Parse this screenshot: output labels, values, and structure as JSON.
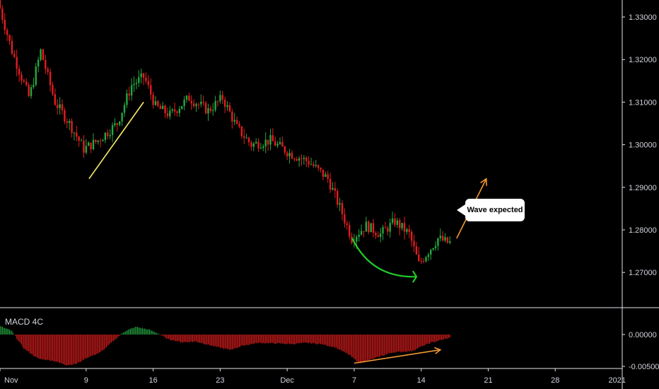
{
  "chart_data": [
    {
      "type": "candlestick",
      "title": "",
      "ylim": [
        1.265,
        1.335
      ],
      "y_ticks": [
        "1.33000",
        "1.32000",
        "1.31000",
        "1.30000",
        "1.29000",
        "1.28000",
        "1.27000"
      ],
      "y_tick_values": [
        1.33,
        1.32,
        1.31,
        1.3,
        1.29,
        1.28,
        1.27
      ],
      "x_ticks": [
        "Nov",
        "9",
        "16",
        "23",
        "Dec",
        "7",
        "14",
        "21",
        "28",
        "2021"
      ],
      "x_tick_days": [
        0,
        9,
        16,
        23,
        30,
        37,
        44,
        51,
        58,
        65
      ],
      "xlim_days": [
        0,
        65
      ],
      "trend_start": 1.334,
      "series_anchors": [
        [
          0.0,
          1.334
        ],
        [
          1.5,
          1.322
        ],
        [
          3.3,
          1.311
        ],
        [
          4.5,
          1.322
        ],
        [
          6.0,
          1.31
        ],
        [
          7.5,
          1.305
        ],
        [
          9.0,
          1.299
        ],
        [
          10.5,
          1.301
        ],
        [
          12.5,
          1.305
        ],
        [
          14.0,
          1.314
        ],
        [
          15.3,
          1.316
        ],
        [
          16.5,
          1.309
        ],
        [
          18.0,
          1.307
        ],
        [
          20.0,
          1.311
        ],
        [
          22.0,
          1.308
        ],
        [
          23.5,
          1.311
        ],
        [
          25.0,
          1.304
        ],
        [
          26.5,
          1.3
        ],
        [
          28.5,
          1.301
        ],
        [
          30.5,
          1.298
        ],
        [
          32.5,
          1.296
        ],
        [
          34.5,
          1.292
        ],
        [
          35.8,
          1.285
        ],
        [
          37.0,
          1.278
        ],
        [
          38.5,
          1.281
        ],
        [
          40.0,
          1.279
        ],
        [
          41.5,
          1.282
        ],
        [
          43.0,
          1.279
        ],
        [
          44.0,
          1.272
        ],
        [
          45.0,
          1.275
        ],
        [
          46.0,
          1.278
        ],
        [
          47.0,
          1.277
        ]
      ],
      "annotations": [
        {
          "type": "line",
          "color": "#f7ed6a",
          "from": [
            9.3,
            1.292
          ],
          "to": [
            15.0,
            1.31
          ]
        },
        {
          "type": "curved-arrow",
          "color": "#23c92a",
          "from": [
            36.8,
            1.278
          ],
          "to": [
            43.5,
            1.269
          ]
        },
        {
          "type": "arrow",
          "color": "#f29833",
          "from": [
            47.7,
            1.278
          ],
          "to": [
            50.8,
            1.292
          ]
        },
        {
          "type": "callout",
          "text": "Wave expected"
        }
      ]
    },
    {
      "type": "histogram",
      "title": "MACD 4C",
      "ylim": [
        -0.0055,
        0.0015
      ],
      "y_ticks": [
        "0.00000",
        "-0.00500"
      ],
      "y_tick_values": [
        0.0,
        -0.005
      ],
      "colors": {
        "positive": "#26a641",
        "negative": "#e01e1e"
      },
      "x_ticks": [
        "Nov",
        "9",
        "16",
        "23",
        "Dec",
        "7",
        "14",
        "21",
        "28",
        "2021"
      ],
      "x_tick_days": [
        0,
        9,
        16,
        23,
        30,
        37,
        44,
        51,
        58,
        65
      ],
      "xlim_days": [
        0,
        65
      ],
      "series_anchors": [
        [
          0.0,
          0.0013
        ],
        [
          1.2,
          0.0006
        ],
        [
          2.5,
          -0.0022
        ],
        [
          4.0,
          -0.0038
        ],
        [
          5.5,
          -0.0041
        ],
        [
          7.0,
          -0.0048
        ],
        [
          8.0,
          -0.0046
        ],
        [
          9.0,
          -0.0037
        ],
        [
          10.5,
          -0.0028
        ],
        [
          12.0,
          -0.0008
        ],
        [
          13.0,
          0.0005
        ],
        [
          14.2,
          0.0012
        ],
        [
          15.5,
          0.0008
        ],
        [
          16.5,
          0.0002
        ],
        [
          17.5,
          -0.0007
        ],
        [
          19.0,
          -0.0012
        ],
        [
          20.5,
          -0.0011
        ],
        [
          22.5,
          -0.0019
        ],
        [
          24.0,
          -0.0024
        ],
        [
          25.5,
          -0.0017
        ],
        [
          27.0,
          -0.0013
        ],
        [
          29.0,
          -0.0014
        ],
        [
          30.5,
          -0.0015
        ],
        [
          32.0,
          -0.0013
        ],
        [
          33.5,
          -0.0015
        ],
        [
          35.0,
          -0.002
        ],
        [
          36.5,
          -0.0032
        ],
        [
          37.5,
          -0.0045
        ],
        [
          39.0,
          -0.0038
        ],
        [
          41.0,
          -0.0028
        ],
        [
          43.0,
          -0.0026
        ],
        [
          44.0,
          -0.0019
        ],
        [
          45.0,
          -0.0013
        ],
        [
          46.0,
          -0.0009
        ],
        [
          47.0,
          -0.0005
        ]
      ],
      "annotations": [
        {
          "type": "arrow",
          "color": "#f29833",
          "from": [
            37.0,
            -0.0045
          ],
          "to": [
            46.0,
            -0.0024
          ]
        }
      ]
    }
  ],
  "callout": {
    "text": "Wave expected"
  },
  "macd_label": "MACD 4C"
}
